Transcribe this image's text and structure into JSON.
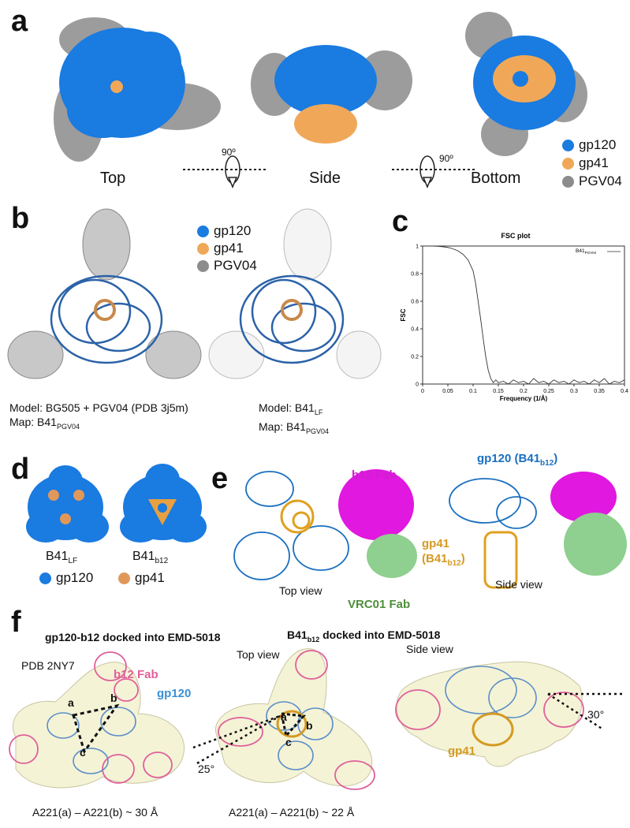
{
  "panel_a": {
    "label": "a",
    "views": [
      "Top",
      "Side",
      "Bottom"
    ],
    "rotation": "90º",
    "legend": [
      {
        "name": "gp120",
        "color": "#1a7be0"
      },
      {
        "name": "gp41",
        "color": "#f0a858"
      },
      {
        "name": "PGV04",
        "color": "#8c8c8c"
      }
    ]
  },
  "panel_b": {
    "label": "b",
    "legend": [
      {
        "name": "gp120",
        "color": "#1a7be0"
      },
      {
        "name": "gp41",
        "color": "#f0a858"
      },
      {
        "name": "PGV04",
        "color": "#8c8c8c"
      }
    ],
    "left_model": "Model: BG505 + PGV04 (PDB 3j5m)",
    "left_map_prefix": "Map: B41",
    "left_map_sub": "PGV04",
    "right_model_prefix": "Model: B41",
    "right_model_sub": "LF",
    "right_map_prefix": "Map: B41",
    "right_map_sub": "PGV04"
  },
  "panel_c": {
    "label": "c",
    "chart_data": {
      "type": "line",
      "title": "FSC plot",
      "xlabel": "Frequency (1/Å)",
      "ylabel": "FSC",
      "xlim": [
        0,
        0.4
      ],
      "ylim": [
        0,
        1
      ],
      "xticks": [
        "0",
        "0.05",
        "0.1",
        "0.15",
        "0.2",
        "0.25",
        "0.3",
        "0.35",
        "0.4"
      ],
      "yticks": [
        "0",
        "0.2",
        "0.4",
        "0.6",
        "0.8",
        "1"
      ],
      "legend_prefix": "B41",
      "legend_sub": "PGV04",
      "legend_position": "top-right",
      "series": [
        {
          "name": "B41PGV04",
          "x": [
            0,
            0.01,
            0.02,
            0.03,
            0.04,
            0.05,
            0.06,
            0.07,
            0.08,
            0.09,
            0.1,
            0.105,
            0.11,
            0.115,
            0.12,
            0.125,
            0.13,
            0.135,
            0.14,
            0.145,
            0.15,
            0.16,
            0.17,
            0.18,
            0.19,
            0.2,
            0.21,
            0.22,
            0.23,
            0.24,
            0.25,
            0.26,
            0.27,
            0.28,
            0.29,
            0.3,
            0.31,
            0.32,
            0.33,
            0.34,
            0.35,
            0.36,
            0.37,
            0.38,
            0.39,
            0.4
          ],
          "y": [
            1,
            1,
            1,
            0.998,
            0.995,
            0.99,
            0.98,
            0.965,
            0.94,
            0.9,
            0.82,
            0.73,
            0.6,
            0.47,
            0.33,
            0.2,
            0.1,
            0.04,
            0.01,
            0.03,
            0.01,
            0.02,
            0.0,
            0.03,
            0.01,
            0.02,
            0.0,
            0.04,
            0.01,
            0.02,
            0.0,
            0.03,
            0.01,
            0.02,
            0.0,
            0.03,
            0.01,
            0.02,
            0.0,
            0.03,
            0.01,
            0.04,
            0.0,
            0.02,
            0.01,
            0.03
          ]
        }
      ]
    }
  },
  "panel_d": {
    "label": "d",
    "left_prefix": "B41",
    "left_sub": "LF",
    "right_prefix": "B41",
    "right_sub": "b12",
    "legend": [
      {
        "name": "gp120",
        "color": "#1a7be0"
      },
      {
        "name": "gp41",
        "color": "#e0985a"
      }
    ]
  },
  "panel_e": {
    "label": "e",
    "b12_fab": "b12 Fab",
    "vrc01_fab": "VRC01 Fab",
    "top_view": "Top view",
    "side_view": "Side view",
    "gp120_prefix": "gp120 (B41",
    "gp120_sub": "b12",
    "gp120_suffix": ")",
    "gp41_line1": "gp41",
    "gp41_prefix": "(B41",
    "gp41_sub": "b12",
    "gp41_suffix": ")",
    "colors": {
      "gp120": "#1a6fc0",
      "gp41": "#e0a020",
      "b12": "#e018e0",
      "vrc01": "#8fcf8f",
      "vrc01_text": "#4d8f3a",
      "b12_text": "#d01fd0"
    }
  },
  "panel_f": {
    "label": "f",
    "title_left": "gp120-b12 docked into EMD-5018",
    "title_right_prefix": "B41",
    "title_right_sub": "b12",
    "title_right_suffix": " docked into EMD-5018",
    "pdb": "PDB 2NY7",
    "b12_fab": "b12 Fab",
    "gp120": "gp120",
    "gp41": "gp41",
    "top_view": "Top view",
    "side_view": "Side view",
    "points": [
      "a",
      "b",
      "c"
    ],
    "angle_left": "25°",
    "angle_right": "30°",
    "dist_left": "A221(a) – A221(b) ~ 30 Å",
    "dist_mid": "A221(a) – A221(b) ~ 22 Å",
    "colors": {
      "b12": "#e0609a",
      "gp120": "#3a8fd8",
      "gp41": "#d49a22"
    }
  }
}
